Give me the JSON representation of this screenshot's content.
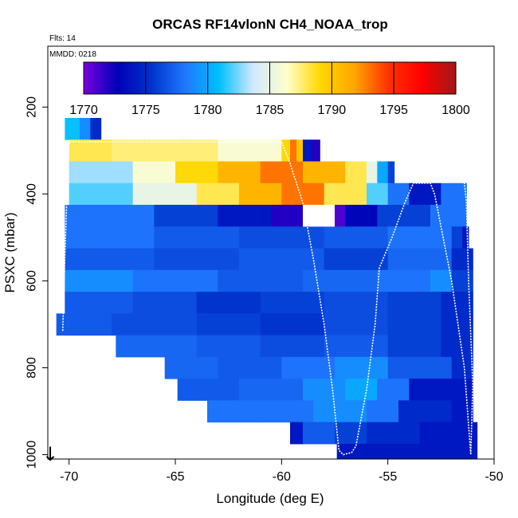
{
  "chart_data": {
    "type": "heatmap",
    "title": "ORCAS RF14vlonN CH4_NOAA_trop",
    "flights_label": "Flts: 14",
    "date_label": "MMDD: 0218",
    "xlabel": "Longitude (deg E)",
    "ylabel": "PSXC (mbar)",
    "xlim": [
      -71,
      -50
    ],
    "ylim": [
      1010,
      60
    ],
    "x_ticks": [
      "-70",
      "-65",
      "-60",
      "-55",
      "-50"
    ],
    "x_tick_values": [
      -70,
      -65,
      -60,
      -55,
      -50
    ],
    "y_ticks": [
      "200",
      "400",
      "600",
      "800",
      "1000"
    ],
    "y_tick_values": [
      200,
      400,
      600,
      800,
      1000
    ],
    "colorbar": {
      "range": [
        1770,
        1800
      ],
      "ticks": [
        "1770",
        "1775",
        "1780",
        "1785",
        "1790",
        "1795",
        "1800"
      ],
      "tick_values": [
        1770,
        1775,
        1780,
        1785,
        1790,
        1795,
        1800
      ],
      "colors": [
        "#7a00e0",
        "#0000b8",
        "#0033cc",
        "#1f78ff",
        "#00bfff",
        "#cfe8ff",
        "#ffffcc",
        "#ffd700",
        "#ffa500",
        "#ff3300",
        "#ff0000",
        "#a01818"
      ]
    },
    "rows": [
      {
        "p_top": 225,
        "p_bot": 275,
        "segments": [
          {
            "x0": -70.2,
            "x1": -69.5,
            "v": 1781
          },
          {
            "x0": -69.5,
            "x1": -69.0,
            "v": 1779
          },
          {
            "x0": -69.0,
            "x1": -68.5,
            "v": 1775
          }
        ]
      },
      {
        "p_top": 275,
        "p_bot": 325,
        "segments": [
          {
            "x0": -70.0,
            "x1": -68.0,
            "v": 1788
          },
          {
            "x0": -68.0,
            "x1": -63.0,
            "v": 1787.5
          },
          {
            "x0": -63.0,
            "x1": -60.0,
            "v": 1786
          },
          {
            "x0": -60.0,
            "x1": -59.6,
            "v": 1789
          },
          {
            "x0": -59.6,
            "x1": -59.3,
            "v": 1793
          },
          {
            "x0": -59.3,
            "x1": -59.0,
            "v": 1790
          },
          {
            "x0": -59.0,
            "x1": -58.6,
            "v": 1774
          },
          {
            "x0": -58.6,
            "x1": -58.2,
            "v": 1772
          }
        ]
      },
      {
        "p_top": 325,
        "p_bot": 375,
        "segments": [
          {
            "x0": -70.0,
            "x1": -67.0,
            "v": 1783
          },
          {
            "x0": -67.0,
            "x1": -65.0,
            "v": 1786
          },
          {
            "x0": -65.0,
            "x1": -63.0,
            "v": 1789
          },
          {
            "x0": -63.0,
            "x1": -61.0,
            "v": 1791
          },
          {
            "x0": -61.0,
            "x1": -59.0,
            "v": 1793
          },
          {
            "x0": -59.0,
            "x1": -57.0,
            "v": 1791
          },
          {
            "x0": -57.0,
            "x1": -56.0,
            "v": 1788
          },
          {
            "x0": -56.0,
            "x1": -55.5,
            "v": 1785
          },
          {
            "x0": -55.5,
            "x1": -55.0,
            "v": 1780
          },
          {
            "x0": -55.0,
            "x1": -54.7,
            "v": 1776
          }
        ]
      },
      {
        "p_top": 375,
        "p_bot": 425,
        "segments": [
          {
            "x0": -70.0,
            "x1": -67.0,
            "v": 1782
          },
          {
            "x0": -67.0,
            "x1": -64.0,
            "v": 1785
          },
          {
            "x0": -64.0,
            "x1": -62.0,
            "v": 1788
          },
          {
            "x0": -62.0,
            "x1": -60.0,
            "v": 1791
          },
          {
            "x0": -60.0,
            "x1": -58.0,
            "v": 1793
          },
          {
            "x0": -58.0,
            "x1": -56.0,
            "v": 1788
          },
          {
            "x0": -56.0,
            "x1": -55.0,
            "v": 1782
          },
          {
            "x0": -55.0,
            "x1": -54.0,
            "v": 1778
          },
          {
            "x0": -54.0,
            "x1": -52.5,
            "v": 1774
          },
          {
            "x0": -52.5,
            "x1": -51.3,
            "v": 1778
          }
        ]
      },
      {
        "p_top": 425,
        "p_bot": 475,
        "segments": [
          {
            "x0": -70.2,
            "x1": -66.0,
            "v": 1778
          },
          {
            "x0": -66.0,
            "x1": -63.0,
            "v": 1776
          },
          {
            "x0": -63.0,
            "x1": -60.5,
            "v": 1774
          },
          {
            "x0": -60.5,
            "x1": -59.0,
            "v": 1772
          },
          {
            "x0": -57.5,
            "x1": -57.0,
            "v": 1771
          },
          {
            "x0": -57.0,
            "x1": -55.5,
            "v": 1773
          },
          {
            "x0": -55.5,
            "x1": -53.0,
            "v": 1776
          },
          {
            "x0": -53.0,
            "x1": -51.3,
            "v": 1778
          }
        ]
      },
      {
        "p_top": 475,
        "p_bot": 525,
        "segments": [
          {
            "x0": -70.2,
            "x1": -66.0,
            "v": 1778
          },
          {
            "x0": -66.0,
            "x1": -62.0,
            "v": 1777
          },
          {
            "x0": -62.0,
            "x1": -58.0,
            "v": 1776.5
          },
          {
            "x0": -58.0,
            "x1": -55.0,
            "v": 1777
          },
          {
            "x0": -55.0,
            "x1": -52.0,
            "v": 1778
          },
          {
            "x0": -52.0,
            "x1": -51.5,
            "v": 1776
          },
          {
            "x0": -51.5,
            "x1": -51.2,
            "v": 1774
          }
        ]
      },
      {
        "p_top": 525,
        "p_bot": 575,
        "segments": [
          {
            "x0": -70.2,
            "x1": -66.0,
            "v": 1777
          },
          {
            "x0": -66.0,
            "x1": -62.0,
            "v": 1776.5
          },
          {
            "x0": -62.0,
            "x1": -58.0,
            "v": 1777
          },
          {
            "x0": -58.0,
            "x1": -55.0,
            "v": 1776
          },
          {
            "x0": -55.0,
            "x1": -52.0,
            "v": 1777.5
          },
          {
            "x0": -52.0,
            "x1": -51.0,
            "v": 1775
          }
        ]
      },
      {
        "p_top": 575,
        "p_bot": 625,
        "segments": [
          {
            "x0": -70.2,
            "x1": -67.0,
            "v": 1779
          },
          {
            "x0": -67.0,
            "x1": -63.0,
            "v": 1778
          },
          {
            "x0": -63.0,
            "x1": -59.0,
            "v": 1777
          },
          {
            "x0": -59.0,
            "x1": -55.5,
            "v": 1777.5
          },
          {
            "x0": -55.5,
            "x1": -53.0,
            "v": 1778
          },
          {
            "x0": -53.0,
            "x1": -52.0,
            "v": 1779
          },
          {
            "x0": -52.0,
            "x1": -51.0,
            "v": 1776
          }
        ]
      },
      {
        "p_top": 625,
        "p_bot": 675,
        "segments": [
          {
            "x0": -70.2,
            "x1": -67.0,
            "v": 1777
          },
          {
            "x0": -67.0,
            "x1": -64.0,
            "v": 1776.5
          },
          {
            "x0": -64.0,
            "x1": -61.0,
            "v": 1775.5
          },
          {
            "x0": -61.0,
            "x1": -58.0,
            "v": 1776
          },
          {
            "x0": -58.0,
            "x1": -55.0,
            "v": 1776.5
          },
          {
            "x0": -55.0,
            "x1": -52.5,
            "v": 1776
          },
          {
            "x0": -52.5,
            "x1": -51.0,
            "v": 1775
          }
        ]
      },
      {
        "p_top": 675,
        "p_bot": 725,
        "segments": [
          {
            "x0": -70.6,
            "x1": -68.0,
            "v": 1777
          },
          {
            "x0": -68.0,
            "x1": -64.0,
            "v": 1776.5
          },
          {
            "x0": -64.0,
            "x1": -61.0,
            "v": 1776
          },
          {
            "x0": -61.0,
            "x1": -58.0,
            "v": 1775.5
          },
          {
            "x0": -58.0,
            "x1": -55.0,
            "v": 1776.5
          },
          {
            "x0": -55.0,
            "x1": -52.5,
            "v": 1776
          },
          {
            "x0": -52.5,
            "x1": -51.0,
            "v": 1775
          }
        ]
      },
      {
        "p_top": 725,
        "p_bot": 775,
        "segments": [
          {
            "x0": -67.8,
            "x1": -64.0,
            "v": 1777.5
          },
          {
            "x0": -64.0,
            "x1": -61.0,
            "v": 1777
          },
          {
            "x0": -61.0,
            "x1": -58.0,
            "v": 1776.5
          },
          {
            "x0": -58.0,
            "x1": -55.0,
            "v": 1777
          },
          {
            "x0": -55.0,
            "x1": -52.5,
            "v": 1776
          },
          {
            "x0": -52.5,
            "x1": -51.0,
            "v": 1775
          }
        ]
      },
      {
        "p_top": 775,
        "p_bot": 825,
        "segments": [
          {
            "x0": -65.5,
            "x1": -63.0,
            "v": 1777.5
          },
          {
            "x0": -63.0,
            "x1": -60.0,
            "v": 1777
          },
          {
            "x0": -60.0,
            "x1": -57.5,
            "v": 1778
          },
          {
            "x0": -57.5,
            "x1": -55.0,
            "v": 1779
          },
          {
            "x0": -55.0,
            "x1": -52.0,
            "v": 1777
          },
          {
            "x0": -52.0,
            "x1": -51.0,
            "v": 1775
          }
        ]
      },
      {
        "p_top": 825,
        "p_bot": 875,
        "segments": [
          {
            "x0": -64.9,
            "x1": -62.0,
            "v": 1777
          },
          {
            "x0": -62.0,
            "x1": -59.0,
            "v": 1777.5
          },
          {
            "x0": -59.0,
            "x1": -57.0,
            "v": 1779
          },
          {
            "x0": -57.0,
            "x1": -55.5,
            "v": 1780
          },
          {
            "x0": -55.5,
            "x1": -54.0,
            "v": 1778
          },
          {
            "x0": -54.0,
            "x1": -51.0,
            "v": 1774
          }
        ]
      },
      {
        "p_top": 875,
        "p_bot": 925,
        "segments": [
          {
            "x0": -63.5,
            "x1": -61.0,
            "v": 1778
          },
          {
            "x0": -61.0,
            "x1": -58.5,
            "v": 1778
          },
          {
            "x0": -58.5,
            "x1": -56.0,
            "v": 1779
          },
          {
            "x0": -56.0,
            "x1": -54.5,
            "v": 1778
          },
          {
            "x0": -54.5,
            "x1": -52.0,
            "v": 1775
          },
          {
            "x0": -52.0,
            "x1": -51.0,
            "v": 1774
          }
        ]
      },
      {
        "p_top": 925,
        "p_bot": 975,
        "segments": [
          {
            "x0": -59.6,
            "x1": -59.0,
            "v": 1774
          },
          {
            "x0": -59.0,
            "x1": -57.5,
            "v": 1777
          },
          {
            "x0": -57.5,
            "x1": -56.0,
            "v": 1776
          },
          {
            "x0": -56.0,
            "x1": -53.5,
            "v": 1775
          },
          {
            "x0": -53.5,
            "x1": -50.8,
            "v": 1774
          }
        ]
      },
      {
        "p_top": 975,
        "p_bot": 1010,
        "segments": [
          {
            "x0": -57.4,
            "x1": -53.0,
            "v": 1774
          },
          {
            "x0": -53.0,
            "x1": -50.8,
            "v": 1774
          }
        ]
      }
    ],
    "gaps_white": [
      {
        "x0": -59.0,
        "x1": -57.5,
        "p_top": 425,
        "p_bot": 475
      }
    ],
    "flight_track": [
      [
        -70.3,
        715
      ],
      [
        -70.2,
        550
      ],
      [
        -70.1,
        400
      ],
      [
        -70.0,
        280
      ],
      [
        -60.0,
        280
      ],
      [
        -59.6,
        330
      ],
      [
        -59.0,
        420
      ],
      [
        -58.5,
        550
      ],
      [
        -58.0,
        700
      ],
      [
        -57.6,
        850
      ],
      [
        -57.3,
        990
      ],
      [
        -57.1,
        1000
      ],
      [
        -56.7,
        995
      ],
      [
        -56.5,
        980
      ],
      [
        -56.0,
        850
      ],
      [
        -55.6,
        700
      ],
      [
        -55.4,
        570
      ],
      [
        -54.8,
        500
      ],
      [
        -54.2,
        420
      ],
      [
        -53.8,
        375
      ],
      [
        -53.0,
        375
      ],
      [
        -52.8,
        400
      ],
      [
        -52.0,
        600
      ],
      [
        -51.4,
        800
      ],
      [
        -51.1,
        1000
      ],
      [
        -51.0,
        840
      ],
      [
        -51.2,
        600
      ],
      [
        -51.3,
        420
      ],
      [
        -51.4,
        375
      ]
    ],
    "arrow_label": "↓"
  }
}
